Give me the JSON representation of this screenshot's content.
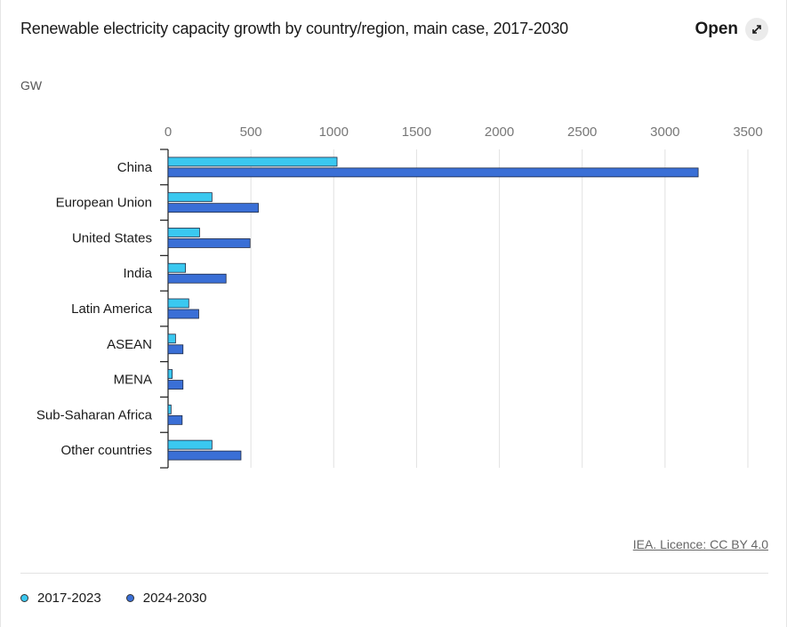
{
  "header": {
    "title": "Renewable electricity capacity growth by country/region, main case, 2017-2030",
    "open_label": "Open"
  },
  "credit": "IEA. Licence: CC BY 4.0",
  "chart_data": {
    "type": "bar",
    "orientation": "horizontal",
    "title": "Renewable electricity capacity growth by country/region, main case, 2017-2030",
    "unit_label": "GW",
    "xlabel": "",
    "ylabel": "",
    "xlim": [
      0,
      3500
    ],
    "xticks": [
      0,
      500,
      1000,
      1500,
      2000,
      2500,
      3000,
      3500
    ],
    "xtick_labels": [
      "0",
      "500",
      "1000",
      "1500",
      "2000",
      "2500",
      "3000",
      "3500"
    ],
    "grid": "vertical",
    "legend_position": "bottom-left",
    "categories": [
      "China",
      "European Union",
      "United States",
      "India",
      "Latin America",
      "ASEAN",
      "MENA",
      "Sub-Saharan Africa",
      "Other countries"
    ],
    "series": [
      {
        "name": "2017-2023",
        "color": "#3ac8f0",
        "values": [
          1020,
          265,
          190,
          105,
          125,
          45,
          25,
          18,
          265
        ]
      },
      {
        "name": "2024-2030",
        "color": "#3a6fd6",
        "values": [
          3200,
          545,
          495,
          350,
          185,
          90,
          90,
          85,
          440
        ]
      }
    ]
  }
}
